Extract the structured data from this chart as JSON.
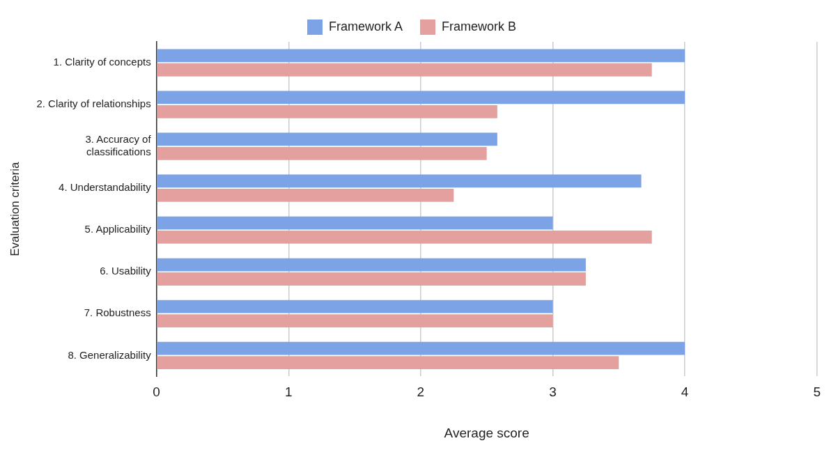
{
  "chart_data": {
    "type": "bar",
    "orientation": "horizontal",
    "xlabel": "Average score",
    "ylabel": "Evaluation criteria",
    "categories": [
      "1. Clarity of concepts",
      "2. Clarity of relationships",
      "3. Accuracy of classifications",
      "4. Understandability",
      "5. Applicability",
      "6. Usability",
      "7. Robustness",
      "8. Generalizability"
    ],
    "series": [
      {
        "name": "Framework A",
        "color": "#7ba3e6",
        "values": [
          4,
          4,
          2.58,
          3.67,
          3,
          3.25,
          3,
          4
        ]
      },
      {
        "name": "Framework B",
        "color": "#e3a09e",
        "values": [
          3.75,
          2.58,
          2.5,
          2.25,
          3.75,
          3.25,
          3,
          3.5
        ]
      }
    ],
    "xlim": [
      0,
      5
    ],
    "xticks": [
      0,
      1,
      2,
      3,
      4,
      5
    ],
    "grid": "x",
    "legend": "top"
  }
}
